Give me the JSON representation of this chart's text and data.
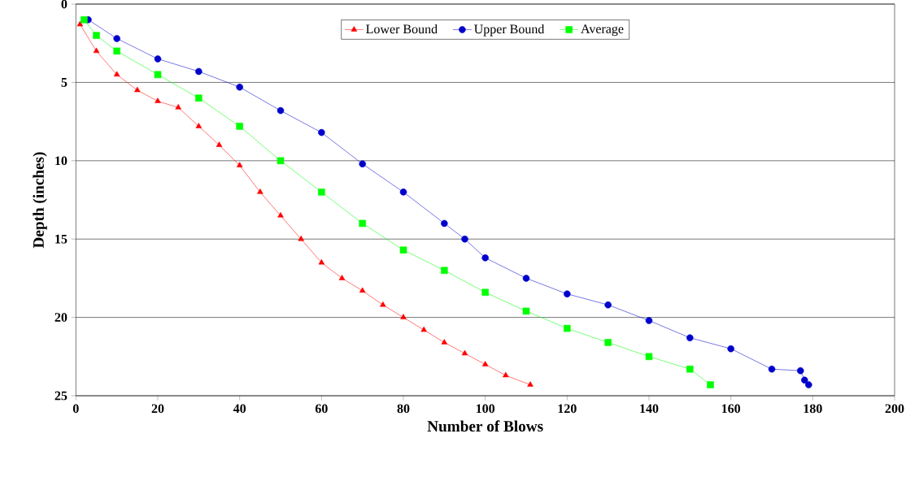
{
  "chart_data": {
    "type": "line",
    "xlabel": "Number of Blows",
    "ylabel": "Depth (inches)",
    "xlim": [
      0,
      200
    ],
    "xticks": [
      0,
      20,
      40,
      60,
      80,
      100,
      120,
      140,
      160,
      180,
      200
    ],
    "ylim": [
      25,
      0
    ],
    "yticks": [
      0,
      5,
      10,
      15,
      20,
      25
    ],
    "grid": "y",
    "legend": "top",
    "series": [
      {
        "name": "Lower Bound",
        "color": "#ff0000",
        "marker": "triangle",
        "x": [
          1,
          5,
          10,
          15,
          20,
          25,
          30,
          35,
          40,
          45,
          50,
          55,
          60,
          65,
          70,
          75,
          80,
          85,
          90,
          95,
          100,
          105,
          111
        ],
        "values": [
          1.3,
          3,
          4.5,
          5.5,
          6.2,
          6.6,
          7.8,
          9,
          10.3,
          12,
          13.5,
          15,
          16.5,
          17.5,
          18.3,
          19.2,
          20,
          20.8,
          21.6,
          22.3,
          23,
          23.7,
          24.3
        ]
      },
      {
        "name": "Upper Bound",
        "color": "#0000cc",
        "marker": "circle",
        "x": [
          3,
          10,
          20,
          30,
          40,
          50,
          60,
          70,
          80,
          90,
          95,
          100,
          110,
          120,
          130,
          140,
          150,
          160,
          170,
          177,
          178,
          179
        ],
        "values": [
          1,
          2.2,
          3.5,
          4.3,
          5.3,
          6.8,
          8.2,
          10.2,
          12,
          14,
          15,
          16.2,
          17.5,
          18.5,
          19.2,
          20.2,
          21.3,
          22,
          23.3,
          23.4,
          24,
          24.3
        ]
      },
      {
        "name": "Average",
        "color": "#00ff00",
        "marker": "square",
        "x": [
          2,
          5,
          10,
          20,
          30,
          40,
          50,
          60,
          70,
          80,
          90,
          100,
          110,
          120,
          130,
          140,
          150,
          155
        ],
        "values": [
          1,
          2,
          3,
          4.5,
          6,
          7.8,
          10,
          12,
          14,
          15.7,
          17,
          18.4,
          19.6,
          20.7,
          21.6,
          22.5,
          23.3,
          24.3
        ]
      }
    ]
  }
}
